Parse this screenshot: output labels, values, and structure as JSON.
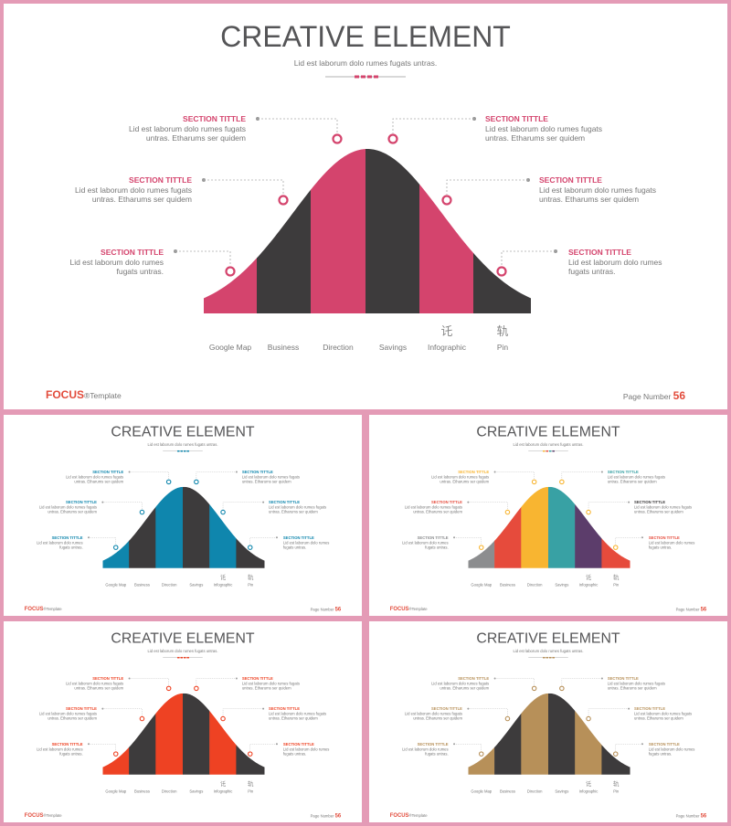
{
  "title": "CREATIVE ELEMENT",
  "subtitle": "Lid est laborum dolo rumes fugats untras.",
  "section_title": "SECTION TITTLE",
  "body_two_line": [
    "Lid est laborum dolo rumes fugats",
    "untras. Etharums ser quidem"
  ],
  "body_short": [
    "Lid est laborum dolo rumes",
    "fugats untras."
  ],
  "categories": [
    "Google Map",
    "Business",
    "Direction",
    "Savings",
    "Infographic",
    "Pin"
  ],
  "category_icons": [
    "",
    "",
    "",
    "",
    "讬",
    "轨"
  ],
  "brand": {
    "name": "FOCUS",
    "suffix": "®Template"
  },
  "page": {
    "label": "Page Number",
    "number": "56"
  },
  "dark_color": "#3d3b3c",
  "slides": [
    {
      "accent": "#d4446d",
      "band_colors": [
        "#d4446d",
        "#3d3b3c",
        "#d4446d",
        "#3d3b3c",
        "#d4446d",
        "#3d3b3c"
      ],
      "label_colors": [
        "#d4446d",
        "#d4446d",
        "#d4446d",
        "#d4446d",
        "#d4446d",
        "#d4446d"
      ]
    },
    {
      "accent": "#0f86ad",
      "band_colors": [
        "#0f86ad",
        "#3d3b3c",
        "#0f86ad",
        "#3d3b3c",
        "#0f86ad",
        "#3d3b3c"
      ],
      "label_colors": [
        "#0f86ad",
        "#0f86ad",
        "#0f86ad",
        "#0f86ad",
        "#0f86ad",
        "#0f86ad"
      ]
    },
    {
      "accent": "#f8b531",
      "band_colors": [
        "#8c8d8f",
        "#e64b3c",
        "#f8b531",
        "#38a1a4",
        "#5c3d6b",
        "#e64b3c"
      ],
      "label_colors": [
        "#f8b531",
        "#38a1a4",
        "#e64b3c",
        "#3d3b3c",
        "#8c8d8f",
        "#e64b3c"
      ]
    },
    {
      "accent": "#ee4223",
      "band_colors": [
        "#ee4223",
        "#3d3b3c",
        "#ee4223",
        "#3d3b3c",
        "#ee4223",
        "#3d3b3c"
      ],
      "label_colors": [
        "#ee4223",
        "#ee4223",
        "#ee4223",
        "#ee4223",
        "#ee4223",
        "#ee4223"
      ]
    },
    {
      "accent": "#b79059",
      "band_colors": [
        "#b79059",
        "#3d3b3c",
        "#b79059",
        "#3d3b3c",
        "#b79059",
        "#3d3b3c"
      ],
      "label_colors": [
        "#b79059",
        "#b79059",
        "#b79059",
        "#b79059",
        "#b79059",
        "#b79059"
      ]
    }
  ]
}
